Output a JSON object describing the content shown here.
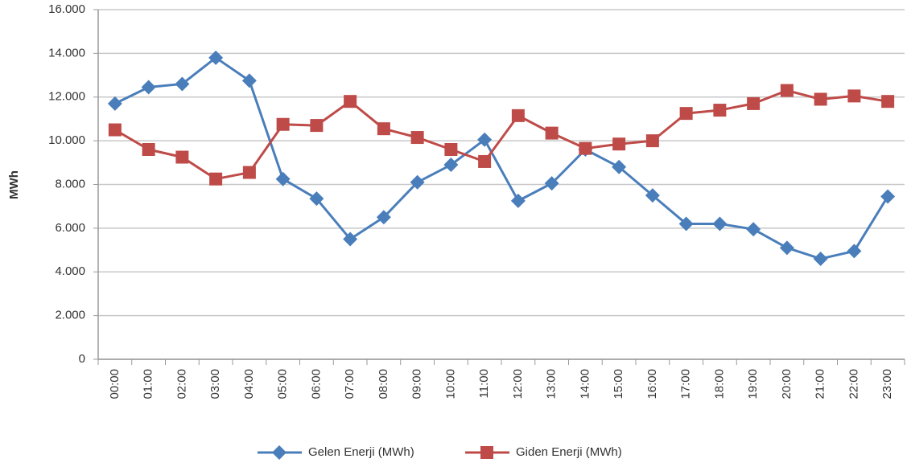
{
  "chart_data": {
    "type": "line",
    "y_label": "MWh",
    "categories": [
      "00:00",
      "01:00",
      "02:00",
      "03:00",
      "04:00",
      "05:00",
      "06:00",
      "07:00",
      "08:00",
      "09:00",
      "10:00",
      "11:00",
      "12:00",
      "13:00",
      "14:00",
      "15:00",
      "16:00",
      "17:00",
      "18:00",
      "19:00",
      "20:00",
      "21:00",
      "22:00",
      "23:00"
    ],
    "series": [
      {
        "name": "Gelen Enerji (MWh)",
        "color": "#4a7ebb",
        "marker": "diamond",
        "values": [
          11700,
          12450,
          12600,
          13800,
          12750,
          8250,
          7350,
          5500,
          6500,
          8100,
          8900,
          10050,
          7250,
          8050,
          9600,
          8800,
          7500,
          6200,
          6200,
          5950,
          5100,
          4600,
          4950,
          7450
        ]
      },
      {
        "name": "Giden Enerji (MWh)",
        "color": "#be4b48",
        "marker": "square",
        "values": [
          10500,
          9600,
          9250,
          8250,
          8550,
          10750,
          10700,
          11800,
          10550,
          10150,
          9600,
          9050,
          11150,
          10350,
          9650,
          9850,
          10000,
          11250,
          11400,
          11700,
          12300,
          11900,
          12050,
          11800
        ]
      }
    ],
    "ylim": [
      0,
      16000
    ],
    "yticks": [
      0,
      {
        "value": 2000,
        "label": "2.000"
      },
      {
        "value": 4000,
        "label": "4.000"
      },
      {
        "value": 6000,
        "label": "6.000"
      },
      {
        "value": 8000,
        "label": "8.000"
      },
      {
        "value": 10000,
        "label": "10.000"
      },
      {
        "value": 12000,
        "label": "12.000"
      },
      {
        "value": 14000,
        "label": "14.000"
      },
      {
        "value": 16000,
        "label": "16.000"
      }
    ],
    "grid": true,
    "legend": "bottom"
  }
}
